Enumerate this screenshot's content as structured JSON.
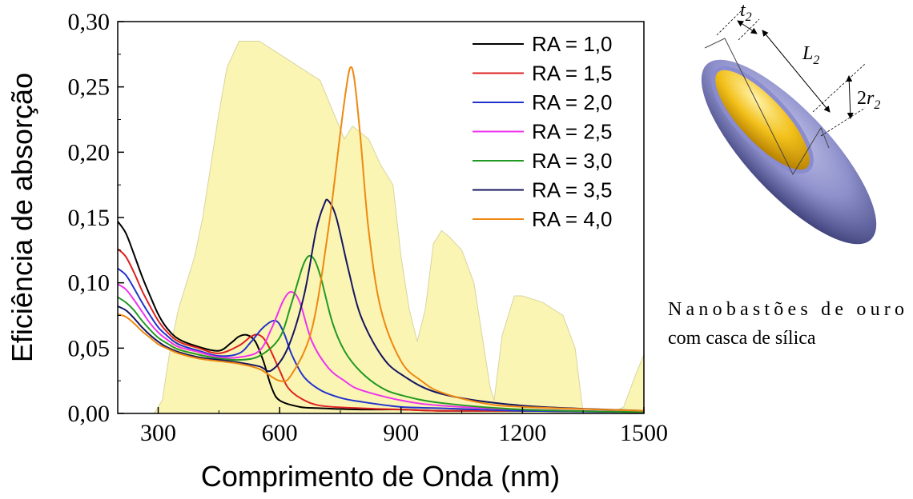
{
  "chart_data": {
    "type": "line",
    "xlabel": "Comprimento de Onda (nm)",
    "ylabel": "Eficiência de absorção",
    "xlim": [
      200,
      1500
    ],
    "ylim": [
      0,
      0.3
    ],
    "x_ticks": [
      300,
      600,
      900,
      1200,
      1500
    ],
    "x_tick_labels": [
      "300",
      "600",
      "900",
      "1200",
      "1500"
    ],
    "y_ticks": [
      0,
      0.05,
      0.1,
      0.15,
      0.2,
      0.25,
      0.3
    ],
    "y_tick_labels": [
      "0,00",
      "0,05",
      "0,10",
      "0,15",
      "0,20",
      "0,25",
      "0,30"
    ],
    "legend_position": "top-right",
    "background_spectrum": {
      "color": "#fbf5b4",
      "edge_color": "#d9d4a0",
      "x": [
        290,
        310,
        330,
        350,
        370,
        390,
        410,
        430,
        450,
        470,
        500,
        550,
        600,
        650,
        700,
        720,
        740,
        760,
        780,
        800,
        820,
        850,
        880,
        900,
        920,
        940,
        960,
        980,
        1000,
        1020,
        1050,
        1080,
        1100,
        1120,
        1130,
        1150,
        1180,
        1200,
        1250,
        1300,
        1330,
        1350,
        1360,
        1380,
        1400,
        1420,
        1450,
        1480,
        1500
      ],
      "y": [
        0.0,
        0.01,
        0.05,
        0.08,
        0.1,
        0.12,
        0.15,
        0.19,
        0.23,
        0.265,
        0.285,
        0.285,
        0.275,
        0.265,
        0.255,
        0.24,
        0.225,
        0.21,
        0.22,
        0.215,
        0.21,
        0.19,
        0.175,
        0.12,
        0.08,
        0.055,
        0.08,
        0.13,
        0.14,
        0.135,
        0.125,
        0.1,
        0.06,
        0.02,
        0.01,
        0.06,
        0.09,
        0.09,
        0.085,
        0.075,
        0.05,
        0.0,
        0.0,
        0.0,
        0.0,
        0.0,
        0.005,
        0.03,
        0.045
      ]
    },
    "series": [
      {
        "name": "RA = 1,0",
        "color": "#000000",
        "x": [
          200,
          220,
          240,
          260,
          280,
          300,
          320,
          350,
          400,
          450,
          480,
          500,
          520,
          540,
          560,
          580,
          600,
          650,
          700,
          800,
          900,
          1000,
          1200,
          1500
        ],
        "y": [
          0.147,
          0.138,
          0.122,
          0.105,
          0.09,
          0.076,
          0.066,
          0.057,
          0.051,
          0.048,
          0.054,
          0.059,
          0.06,
          0.055,
          0.04,
          0.02,
          0.01,
          0.005,
          0.004,
          0.003,
          0.003,
          0.002,
          0.002,
          0.001
        ]
      },
      {
        "name": "RA = 1,5",
        "color": "#dd2222",
        "x": [
          200,
          220,
          240,
          260,
          280,
          300,
          320,
          350,
          400,
          450,
          500,
          530,
          550,
          570,
          600,
          620,
          650,
          700,
          800,
          900,
          1000,
          1200,
          1500
        ],
        "y": [
          0.126,
          0.12,
          0.108,
          0.094,
          0.082,
          0.071,
          0.063,
          0.055,
          0.05,
          0.046,
          0.052,
          0.059,
          0.06,
          0.053,
          0.033,
          0.02,
          0.012,
          0.006,
          0.004,
          0.003,
          0.002,
          0.002,
          0.001
        ]
      },
      {
        "name": "RA = 2,0",
        "color": "#2233cc",
        "x": [
          200,
          220,
          240,
          260,
          280,
          300,
          320,
          350,
          400,
          450,
          500,
          530,
          560,
          590,
          610,
          630,
          660,
          700,
          750,
          800,
          900,
          1000,
          1200,
          1500
        ],
        "y": [
          0.111,
          0.106,
          0.096,
          0.085,
          0.075,
          0.066,
          0.06,
          0.053,
          0.048,
          0.044,
          0.046,
          0.055,
          0.066,
          0.071,
          0.062,
          0.045,
          0.028,
          0.018,
          0.012,
          0.009,
          0.005,
          0.004,
          0.002,
          0.001
        ]
      },
      {
        "name": "RA = 2,5",
        "color": "#ee33ee",
        "x": [
          200,
          220,
          240,
          260,
          280,
          300,
          320,
          350,
          400,
          450,
          500,
          550,
          580,
          610,
          630,
          650,
          680,
          720,
          760,
          800,
          900,
          1000,
          1200,
          1500
        ],
        "y": [
          0.099,
          0.095,
          0.087,
          0.078,
          0.069,
          0.062,
          0.057,
          0.051,
          0.047,
          0.043,
          0.043,
          0.048,
          0.065,
          0.087,
          0.093,
          0.085,
          0.055,
          0.035,
          0.025,
          0.018,
          0.01,
          0.006,
          0.003,
          0.001
        ]
      },
      {
        "name": "RA = 3,0",
        "color": "#229922",
        "x": [
          200,
          220,
          240,
          260,
          280,
          300,
          320,
          350,
          400,
          450,
          500,
          550,
          600,
          630,
          660,
          680,
          700,
          730,
          760,
          800,
          850,
          900,
          1000,
          1200,
          1500
        ],
        "y": [
          0.089,
          0.085,
          0.079,
          0.071,
          0.064,
          0.058,
          0.054,
          0.049,
          0.045,
          0.042,
          0.041,
          0.044,
          0.058,
          0.085,
          0.115,
          0.12,
          0.106,
          0.07,
          0.048,
          0.032,
          0.02,
          0.014,
          0.008,
          0.003,
          0.001
        ]
      },
      {
        "name": "RA = 3,5",
        "color": "#151560",
        "x": [
          200,
          220,
          240,
          260,
          280,
          300,
          320,
          350,
          400,
          450,
          500,
          550,
          580,
          620,
          660,
          690,
          710,
          720,
          740,
          770,
          800,
          850,
          900,
          1000,
          1200,
          1500
        ],
        "y": [
          0.082,
          0.079,
          0.073,
          0.066,
          0.06,
          0.055,
          0.051,
          0.047,
          0.043,
          0.041,
          0.039,
          0.036,
          0.033,
          0.05,
          0.09,
          0.14,
          0.16,
          0.163,
          0.15,
          0.11,
          0.075,
          0.045,
          0.03,
          0.015,
          0.006,
          0.002
        ]
      },
      {
        "name": "RA = 4,0",
        "color": "#ee8811",
        "x": [
          200,
          220,
          240,
          260,
          280,
          300,
          320,
          350,
          400,
          450,
          500,
          550,
          600,
          630,
          680,
          720,
          750,
          765,
          775,
          785,
          800,
          820,
          850,
          900,
          950,
          1000,
          1100,
          1200,
          1500
        ],
        "y": [
          0.076,
          0.074,
          0.069,
          0.063,
          0.058,
          0.053,
          0.05,
          0.046,
          0.042,
          0.04,
          0.038,
          0.034,
          0.025,
          0.03,
          0.065,
          0.14,
          0.215,
          0.25,
          0.265,
          0.255,
          0.21,
          0.14,
          0.08,
          0.04,
          0.025,
          0.016,
          0.008,
          0.005,
          0.002
        ]
      }
    ]
  },
  "side_panel": {
    "caption_line1": "Nanobastões de ouro",
    "caption_line2": "com casca de sílica",
    "dim_t_main": "t",
    "dim_t_sub": "2",
    "dim_L_main": "L",
    "dim_L_sub": "2",
    "dim_r_prefix": "2",
    "dim_r_main": "r",
    "dim_r_sub": "2",
    "shell_color": "#7e80c2",
    "core_color": "#f2c01a"
  }
}
